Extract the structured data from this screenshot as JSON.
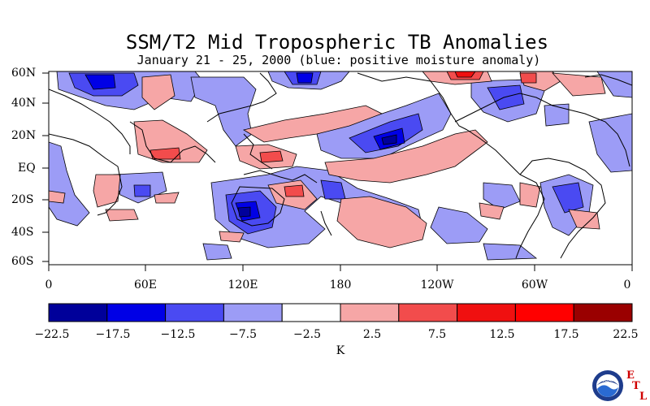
{
  "title": "SSM/T2 Mid Tropospheric TB Anomalies",
  "subtitle": "January 21 - 25, 2000 (blue: positive moisture anomaly)",
  "map": {
    "lat_labels": [
      "60N",
      "40N",
      "20N",
      "EQ",
      "20S",
      "40S",
      "60S"
    ],
    "lon_labels": [
      "0",
      "60E",
      "120E",
      "180",
      "120W",
      "60W",
      "0"
    ]
  },
  "colorbar": {
    "tick_labels": [
      "−22.5",
      "−17.5",
      "−12.5",
      "−7.5",
      "−2.5",
      "2.5",
      "7.5",
      "12.5",
      "17.5",
      "22.5"
    ],
    "colors": [
      "#00009a",
      "#0000e6",
      "#4a4af2",
      "#9c9cf6",
      "#ffffff",
      "#f6a6a6",
      "#f24c4c",
      "#f01010",
      "#ff0000",
      "#9a0000"
    ],
    "unit": "K"
  },
  "logo": {
    "name": "noaa-logo",
    "text": "NOAA",
    "letters": [
      "E",
      "T",
      "L"
    ]
  }
}
